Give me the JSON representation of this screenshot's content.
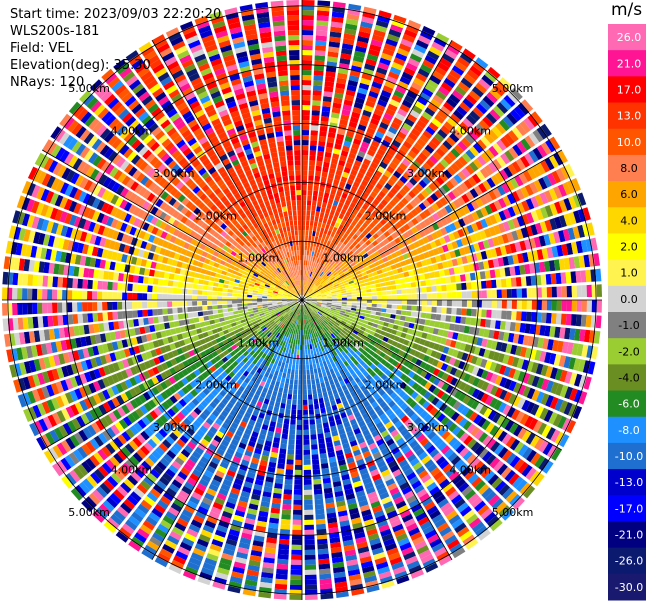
{
  "header": {
    "start_time": "Start time: 2023/09/03 22:20:20",
    "instrument": "WLS200s-181",
    "field": "Field: VEL",
    "elevation": "Elevation(deg): 35.30",
    "nrays": "NRays: 120"
  },
  "chart_data": {
    "type": "heatmap",
    "projection": "polar-ppi",
    "field": "VEL",
    "units": "m/s",
    "n_rays": 120,
    "range_rings_km": [
      1.0,
      2.0,
      3.0,
      4.0,
      5.0
    ],
    "ring_labels": [
      "1.00km",
      "2.00km",
      "3.00km",
      "4.00km",
      "5.00km"
    ],
    "radial_lines_deg": [
      0,
      30,
      60,
      90,
      120,
      150
    ],
    "colorbar": {
      "label": "m/s",
      "ticks": [
        "26.0",
        "21.0",
        "17.0",
        "13.0",
        "10.0",
        "8.0",
        "6.0",
        "4.0",
        "2.0",
        "1.0",
        "0.0",
        "-1.0",
        "-2.0",
        "-4.0",
        "-6.0",
        "-8.0",
        "-10.0",
        "-13.0",
        "-17.0",
        "-21.0",
        "-26.0",
        "-30.0"
      ],
      "colors": [
        "#ff69b4",
        "#ff1493",
        "#ff0000",
        "#ff3300",
        "#ff5500",
        "#ff7f50",
        "#ffa500",
        "#ffd700",
        "#ffff00",
        "#fff44f",
        "#d3d3d3",
        "#808080",
        "#9acd32",
        "#6b8e23",
        "#228b22",
        "#1e90ff",
        "#1e6fd0",
        "#0000cd",
        "#0000ff",
        "#000080",
        "#0b1a6e",
        "#191970"
      ]
    },
    "pattern": {
      "near_range_north": "positive 10 to 17 m/s (orange-red)",
      "near_range_south": "negative -8 to -13 m/s (blue)",
      "east_west": "near 0 m/s (gray / yellow / green)",
      "far_range": "noisy multi-color speckle"
    }
  }
}
